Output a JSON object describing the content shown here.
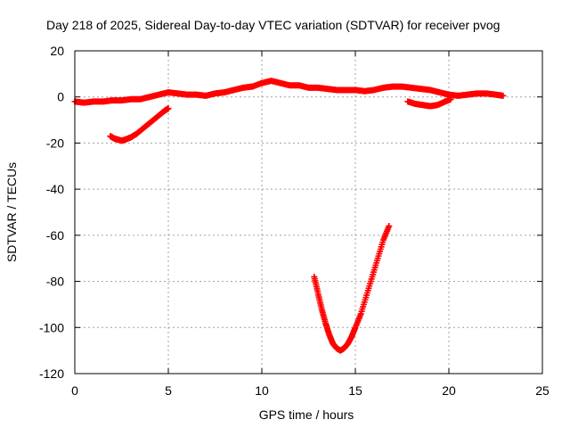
{
  "chart_data": {
    "type": "scatter",
    "title": "Day 218 of 2025, Sidereal Day-to-day VTEC variation (SDTVAR) for receiver pvog",
    "xlabel": "GPS time / hours",
    "ylabel": "SDTVAR / TECUs",
    "xlim": [
      0,
      25
    ],
    "ylim": [
      -120,
      20
    ],
    "x_ticks": [
      0,
      5,
      10,
      15,
      20,
      25
    ],
    "x_tick_labels": [
      "0",
      "5",
      "10",
      "15",
      "20",
      "25"
    ],
    "y_ticks": [
      20,
      0,
      -20,
      -40,
      -60,
      -80,
      -100,
      -120
    ],
    "y_tick_labels": [
      "20",
      "0",
      "-20",
      "-40",
      "-60",
      "-80",
      "-100",
      "-120"
    ],
    "grid": true,
    "marker": "plus",
    "colors": {
      "series": "#ff0000",
      "axis": "#000000",
      "grid": "#a0a0a0"
    },
    "series": [
      {
        "name": "main_band",
        "x": [
          0.0,
          0.5,
          1.0,
          1.5,
          2.0,
          2.5,
          3.0,
          3.5,
          4.0,
          4.5,
          5.0,
          5.5,
          6.0,
          6.5,
          7.0,
          7.5,
          8.0,
          8.5,
          9.0,
          9.5,
          10.0,
          10.5,
          11.0,
          11.5,
          12.0,
          12.5,
          13.0,
          13.5,
          14.0,
          14.5,
          15.0,
          15.5,
          16.0,
          16.5,
          17.0,
          17.5,
          18.0,
          18.5,
          19.0,
          19.5,
          20.0,
          20.5,
          21.0,
          21.5,
          22.0,
          22.5,
          22.9
        ],
        "y": [
          -2,
          -2.5,
          -2,
          -2,
          -1.5,
          -1.5,
          -1,
          -1,
          0,
          1,
          2,
          1.5,
          1,
          1,
          0.5,
          1.5,
          2,
          3,
          4,
          4.5,
          6,
          7,
          6,
          5,
          5,
          4,
          4,
          3.5,
          3,
          3,
          3,
          2.5,
          3,
          4,
          4.5,
          4.5,
          4,
          3.5,
          3,
          2,
          1,
          0.5,
          1,
          1.5,
          1.5,
          1,
          0.5
        ]
      },
      {
        "name": "early_arc",
        "x": [
          1.9,
          2.1,
          2.3,
          2.5,
          2.7,
          3.0,
          3.3,
          3.6,
          3.9,
          4.2,
          4.5,
          4.8,
          5.0
        ],
        "y": [
          -17,
          -18,
          -18.5,
          -19,
          -18.5,
          -17.5,
          -16,
          -14,
          -12,
          -10,
          -8,
          -6,
          -5
        ]
      },
      {
        "name": "dip_arc",
        "x": [
          12.8,
          13.0,
          13.2,
          13.4,
          13.6,
          13.8,
          14.0,
          14.2,
          14.4,
          14.6,
          14.8,
          15.0,
          15.3,
          15.6,
          15.9,
          16.2,
          16.5,
          16.8
        ],
        "y": [
          -78,
          -85,
          -92,
          -98,
          -103,
          -107,
          -109,
          -110,
          -109,
          -107,
          -104,
          -100,
          -94,
          -86,
          -78,
          -70,
          -62,
          -56
        ]
      },
      {
        "name": "negative_spur",
        "x": [
          17.8,
          18.2,
          18.6,
          19.0,
          19.4,
          19.8,
          20.1
        ],
        "y": [
          -2,
          -3,
          -3.5,
          -4,
          -3.5,
          -2,
          -1
        ]
      }
    ]
  }
}
